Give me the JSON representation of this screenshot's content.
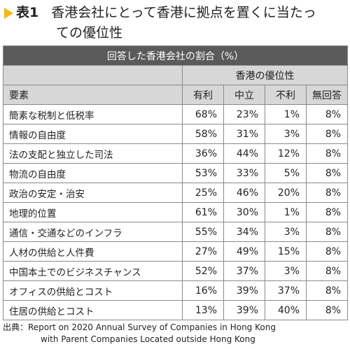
{
  "title": {
    "label": "表1",
    "line1": "香港会社にとって香港に拠点を置くに当たっ",
    "line2": "ての優位性"
  },
  "table": {
    "caption": "回答した香港会社の割合（%）",
    "group_header": "香港の優位性",
    "columns": [
      "要素",
      "有利",
      "中立",
      "不利",
      "無回答"
    ],
    "rows": [
      [
        "簡素な税制と低税率",
        "68%",
        "23%",
        "1%",
        "8%"
      ],
      [
        "情報の自由度",
        "58%",
        "31%",
        "3%",
        "8%"
      ],
      [
        "法の支配と独立した司法",
        "36%",
        "44%",
        "12%",
        "8%"
      ],
      [
        "物流の自由度",
        "53%",
        "33%",
        "5%",
        "8%"
      ],
      [
        "政治の安定・治安",
        "25%",
        "46%",
        "20%",
        "8%"
      ],
      [
        "地理的位置",
        "61%",
        "30%",
        "1%",
        "8%"
      ],
      [
        "通信・交通などのインフラ",
        "55%",
        "34%",
        "3%",
        "8%"
      ],
      [
        "人材の供給と人件費",
        "27%",
        "49%",
        "15%",
        "8%"
      ],
      [
        "中国本土でのビジネスチャンス",
        "52%",
        "37%",
        "3%",
        "8%"
      ],
      [
        "オフィスの供給とコスト",
        "16%",
        "39%",
        "37%",
        "8%"
      ],
      [
        "住居の供給とコスト",
        "13%",
        "39%",
        "40%",
        "8%"
      ]
    ]
  },
  "source": {
    "line1": "出典：Report on 2020 Annual Survey of Companies in Hong Kong",
    "line2": "with Parent Companies Located outside Hong Kong"
  },
  "colors": {
    "title_marker": "#f2b81e",
    "header_dark": "#5a5a5a",
    "header_gray": "#d7d7d7"
  }
}
